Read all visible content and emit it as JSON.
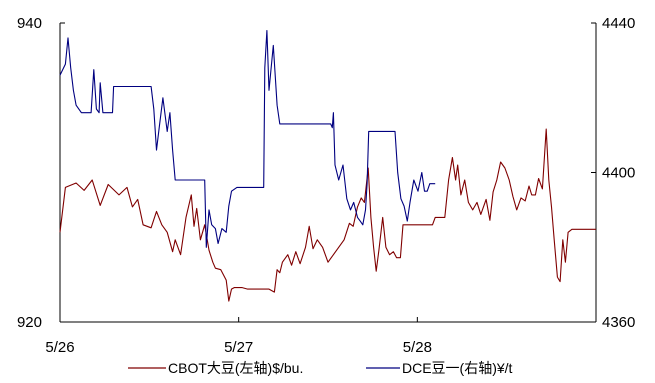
{
  "chart_data": {
    "type": "line",
    "x_ticks": [
      "5/26",
      "5/27",
      "5/28"
    ],
    "y_left": {
      "min": 920,
      "max": 940,
      "ticks": [
        920,
        940
      ]
    },
    "y_right": {
      "min": 4360,
      "max": 4440,
      "ticks": [
        4360,
        4400,
        4440
      ]
    },
    "legend_position": "bottom",
    "grid": false,
    "series": [
      {
        "name": "CBOT大豆(左轴)$/bu.",
        "axis": "left",
        "color": "#800000",
        "points": [
          [
            0.0,
            926.0
          ],
          [
            0.01,
            929.0
          ],
          [
            0.03,
            929.3
          ],
          [
            0.045,
            928.8
          ],
          [
            0.06,
            929.5
          ],
          [
            0.075,
            927.8
          ],
          [
            0.09,
            929.2
          ],
          [
            0.11,
            928.5
          ],
          [
            0.125,
            929.0
          ],
          [
            0.135,
            927.7
          ],
          [
            0.145,
            928.2
          ],
          [
            0.155,
            926.5
          ],
          [
            0.17,
            926.3
          ],
          [
            0.18,
            927.4
          ],
          [
            0.19,
            926.5
          ],
          [
            0.2,
            926.0
          ],
          [
            0.21,
            924.7
          ],
          [
            0.215,
            925.5
          ],
          [
            0.225,
            924.5
          ],
          [
            0.235,
            927.0
          ],
          [
            0.245,
            928.5
          ],
          [
            0.25,
            926.4
          ],
          [
            0.255,
            927.6
          ],
          [
            0.262,
            925.5
          ],
          [
            0.27,
            926.5
          ],
          [
            0.278,
            924.8
          ],
          [
            0.285,
            924.0
          ],
          [
            0.29,
            923.6
          ],
          [
            0.3,
            923.5
          ],
          [
            0.31,
            922.8
          ],
          [
            0.315,
            921.4
          ],
          [
            0.32,
            922.2
          ],
          [
            0.325,
            922.3
          ],
          [
            0.34,
            922.3
          ],
          [
            0.35,
            922.2
          ],
          [
            0.39,
            922.2
          ],
          [
            0.4,
            922.0
          ],
          [
            0.405,
            923.5
          ],
          [
            0.41,
            923.3
          ],
          [
            0.415,
            924.0
          ],
          [
            0.425,
            924.5
          ],
          [
            0.432,
            923.8
          ],
          [
            0.44,
            924.7
          ],
          [
            0.448,
            923.9
          ],
          [
            0.458,
            925.0
          ],
          [
            0.465,
            926.4
          ],
          [
            0.472,
            924.9
          ],
          [
            0.48,
            925.5
          ],
          [
            0.49,
            925.0
          ],
          [
            0.5,
            924.0
          ],
          [
            0.51,
            924.5
          ],
          [
            0.52,
            925.0
          ],
          [
            0.53,
            925.5
          ],
          [
            0.54,
            926.6
          ],
          [
            0.547,
            926.4
          ],
          [
            0.555,
            927.7
          ],
          [
            0.562,
            928.3
          ],
          [
            0.568,
            928.0
          ],
          [
            0.575,
            930.3
          ],
          [
            0.58,
            927.0
          ],
          [
            0.585,
            925.0
          ],
          [
            0.59,
            923.4
          ],
          [
            0.595,
            924.8
          ],
          [
            0.602,
            927.0
          ],
          [
            0.608,
            925.0
          ],
          [
            0.615,
            924.5
          ],
          [
            0.622,
            924.7
          ],
          [
            0.628,
            924.3
          ],
          [
            0.635,
            924.3
          ],
          [
            0.64,
            926.5
          ],
          [
            0.65,
            926.5
          ],
          [
            0.68,
            926.5
          ],
          [
            0.695,
            926.5
          ],
          [
            0.7,
            927.0
          ],
          [
            0.718,
            927.0
          ],
          [
            0.725,
            929.5
          ],
          [
            0.732,
            931.0
          ],
          [
            0.738,
            929.5
          ],
          [
            0.742,
            930.5
          ],
          [
            0.748,
            928.5
          ],
          [
            0.755,
            929.5
          ],
          [
            0.762,
            928.0
          ],
          [
            0.77,
            927.5
          ],
          [
            0.778,
            928.0
          ],
          [
            0.785,
            927.2
          ],
          [
            0.795,
            928.2
          ],
          [
            0.802,
            926.8
          ],
          [
            0.808,
            928.7
          ],
          [
            0.815,
            929.5
          ],
          [
            0.822,
            930.7
          ],
          [
            0.83,
            930.3
          ],
          [
            0.838,
            929.5
          ],
          [
            0.845,
            928.4
          ],
          [
            0.852,
            927.5
          ],
          [
            0.86,
            928.3
          ],
          [
            0.868,
            928.1
          ],
          [
            0.875,
            929.1
          ],
          [
            0.88,
            928.5
          ],
          [
            0.887,
            928.5
          ],
          [
            0.893,
            929.6
          ],
          [
            0.9,
            928.9
          ],
          [
            0.907,
            932.9
          ],
          [
            0.912,
            929.5
          ],
          [
            0.917,
            927.7
          ],
          [
            0.922,
            925.5
          ],
          [
            0.928,
            923.0
          ],
          [
            0.933,
            922.7
          ],
          [
            0.938,
            925.5
          ],
          [
            0.943,
            924.0
          ],
          [
            0.948,
            926.0
          ],
          [
            0.955,
            926.2
          ],
          [
            1.0,
            926.2
          ]
        ]
      },
      {
        "name": "DCE豆一(右轴)¥/t",
        "axis": "right",
        "color": "#000080",
        "points": [
          [
            0.0,
            4426.0
          ],
          [
            0.01,
            4429.0
          ],
          [
            0.015,
            4436.0
          ],
          [
            0.02,
            4428.0
          ],
          [
            0.025,
            4422.0
          ],
          [
            0.03,
            4418.0
          ],
          [
            0.04,
            4416.0
          ],
          [
            0.05,
            4416.0
          ],
          [
            0.058,
            4416.0
          ],
          [
            0.063,
            4427.5
          ],
          [
            0.068,
            4417.0
          ],
          [
            0.073,
            4416.0
          ],
          [
            0.075,
            4424.0
          ],
          [
            0.08,
            4416.0
          ],
          [
            0.09,
            4416.0
          ],
          [
            0.098,
            4416.0
          ],
          [
            0.1,
            4423.0
          ],
          [
            0.16,
            4423.0
          ],
          [
            0.17,
            4423.0
          ],
          [
            0.175,
            4417.0
          ],
          [
            0.18,
            4406.0
          ],
          [
            0.185,
            4412.0
          ],
          [
            0.192,
            4420.0
          ],
          [
            0.2,
            4411.0
          ],
          [
            0.205,
            4416.0
          ],
          [
            0.21,
            4406.0
          ],
          [
            0.215,
            4398.0
          ],
          [
            0.225,
            4398.0
          ],
          [
            0.25,
            4398.0
          ],
          [
            0.27,
            4398.0
          ],
          [
            0.273,
            4380.0
          ],
          [
            0.278,
            4390.0
          ],
          [
            0.283,
            4386.0
          ],
          [
            0.29,
            4385.0
          ],
          [
            0.295,
            4381.0
          ],
          [
            0.302,
            4385.0
          ],
          [
            0.31,
            4384.0
          ],
          [
            0.315,
            4391.0
          ],
          [
            0.32,
            4395.0
          ],
          [
            0.33,
            4396.0
          ],
          [
            0.34,
            4396.0
          ],
          [
            0.36,
            4396.0
          ],
          [
            0.38,
            4396.0
          ],
          [
            0.382,
            4428.0
          ],
          [
            0.386,
            4438.0
          ],
          [
            0.39,
            4422.0
          ],
          [
            0.398,
            4434.0
          ],
          [
            0.405,
            4418.0
          ],
          [
            0.41,
            4413.0
          ],
          [
            0.42,
            4413.0
          ],
          [
            0.5,
            4413.0
          ],
          [
            0.505,
            4413.0
          ],
          [
            0.508,
            4412.0
          ],
          [
            0.51,
            4416.0
          ],
          [
            0.513,
            4402.0
          ],
          [
            0.52,
            4398.0
          ],
          [
            0.528,
            4402.0
          ],
          [
            0.535,
            4393.0
          ],
          [
            0.542,
            4390.0
          ],
          [
            0.548,
            4392.0
          ],
          [
            0.555,
            4388.0
          ],
          [
            0.56,
            4387.0
          ],
          [
            0.565,
            4386.0
          ],
          [
            0.57,
            4390.0
          ],
          [
            0.573,
            4397.0
          ],
          [
            0.576,
            4411.0
          ],
          [
            0.58,
            4411.0
          ],
          [
            0.62,
            4411.0
          ],
          [
            0.625,
            4411.0
          ],
          [
            0.63,
            4400.0
          ],
          [
            0.636,
            4393.0
          ],
          [
            0.642,
            4391.0
          ],
          [
            0.648,
            4387.0
          ],
          [
            0.653,
            4392.0
          ],
          [
            0.66,
            4398.0
          ],
          [
            0.668,
            4395.0
          ],
          [
            0.675,
            4400.0
          ],
          [
            0.68,
            4395.0
          ],
          [
            0.685,
            4395.0
          ],
          [
            0.69,
            4397.0
          ],
          [
            0.698,
            4397.0
          ],
          [
            0.7,
            4397.0
          ]
        ]
      }
    ]
  }
}
